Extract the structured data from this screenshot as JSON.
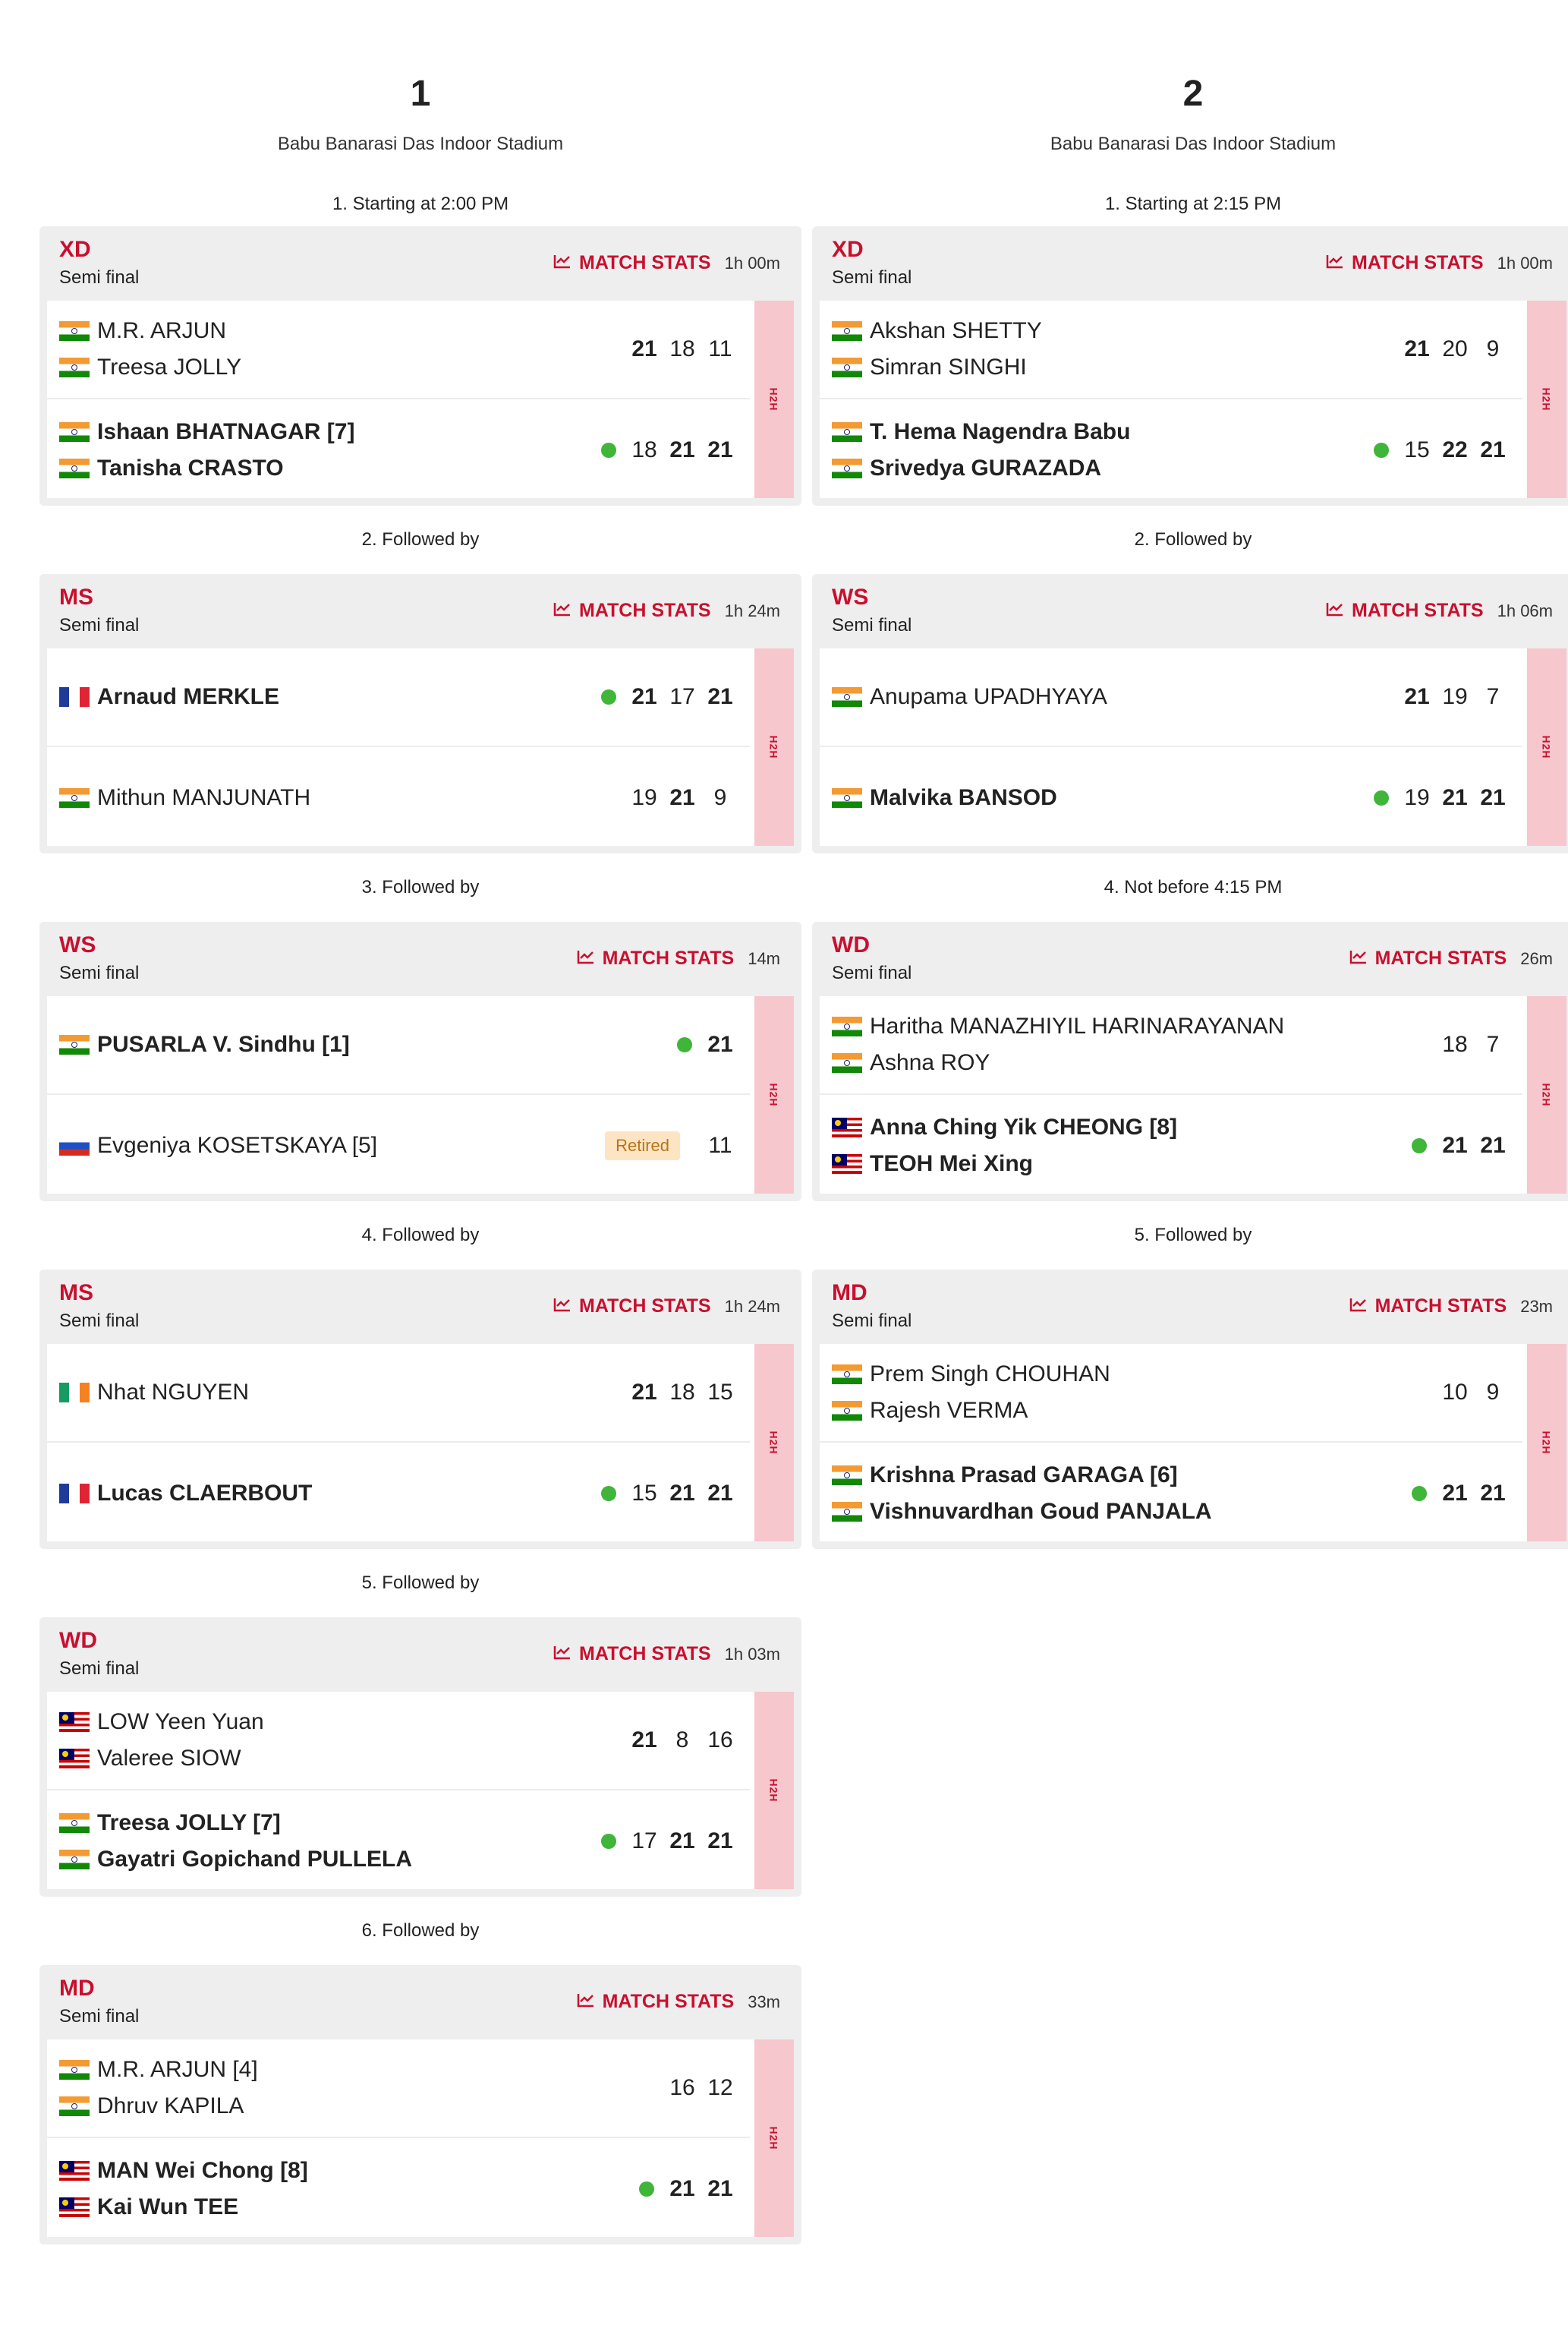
{
  "labels": {
    "match_stats": "MATCH STATS",
    "h2h": "H2H",
    "retired": "Retired"
  },
  "courts": [
    {
      "number": "1",
      "venue": "Babu Banarasi Das Indoor Stadium",
      "matches": [
        {
          "slot": "1. Starting at 2:00 PM",
          "event": "XD",
          "round": "Semi final",
          "duration": "1h 00m",
          "team_a": {
            "players": [
              {
                "name": "M.R. ARJUN",
                "flag": "ind"
              },
              {
                "name": "Treesa JOLLY",
                "flag": "ind"
              }
            ]
          },
          "team_b": {
            "players": [
              {
                "name": "Ishaan BHATNAGAR [7]",
                "flag": "ind"
              },
              {
                "name": "Tanisha CRASTO",
                "flag": "ind"
              }
            ]
          },
          "scores_a": [
            "21",
            "18",
            "11"
          ],
          "scores_b": [
            "18",
            "21",
            "21"
          ],
          "winner": "b"
        },
        {
          "slot": "2. Followed by",
          "event": "MS",
          "round": "Semi final",
          "duration": "1h 24m",
          "team_a": {
            "players": [
              {
                "name": "Arnaud MERKLE",
                "flag": "fra"
              }
            ]
          },
          "team_b": {
            "players": [
              {
                "name": "Mithun MANJUNATH",
                "flag": "ind"
              }
            ]
          },
          "scores_a": [
            "21",
            "17",
            "21"
          ],
          "scores_b": [
            "19",
            "21",
            "9"
          ],
          "winner": "a"
        },
        {
          "slot": "3. Followed by",
          "event": "WS",
          "round": "Semi final",
          "duration": "14m",
          "team_a": {
            "players": [
              {
                "name": "PUSARLA V. Sindhu [1]",
                "flag": "ind"
              }
            ]
          },
          "team_b": {
            "players": [
              {
                "name": "Evgeniya KOSETSKAYA [5]",
                "flag": "rus"
              }
            ]
          },
          "scores_a": [
            "21"
          ],
          "scores_b": [
            "11"
          ],
          "winner": "a",
          "retired": "b"
        },
        {
          "slot": "4. Followed by",
          "event": "MS",
          "round": "Semi final",
          "duration": "1h 24m",
          "team_a": {
            "players": [
              {
                "name": "Nhat NGUYEN",
                "flag": "irl"
              }
            ]
          },
          "team_b": {
            "players": [
              {
                "name": "Lucas CLAERBOUT",
                "flag": "fra"
              }
            ]
          },
          "scores_a": [
            "21",
            "18",
            "15"
          ],
          "scores_b": [
            "15",
            "21",
            "21"
          ],
          "winner": "b"
        },
        {
          "slot": "5. Followed by",
          "event": "WD",
          "round": "Semi final",
          "duration": "1h 03m",
          "team_a": {
            "players": [
              {
                "name": "LOW Yeen Yuan",
                "flag": "mas"
              },
              {
                "name": "Valeree SIOW",
                "flag": "mas"
              }
            ]
          },
          "team_b": {
            "players": [
              {
                "name": "Treesa JOLLY [7]",
                "flag": "ind"
              },
              {
                "name": "Gayatri Gopichand PULLELA",
                "flag": "ind"
              }
            ]
          },
          "scores_a": [
            "21",
            "8",
            "16"
          ],
          "scores_b": [
            "17",
            "21",
            "21"
          ],
          "winner": "b"
        },
        {
          "slot": "6. Followed by",
          "event": "MD",
          "round": "Semi final",
          "duration": "33m",
          "team_a": {
            "players": [
              {
                "name": "M.R. ARJUN [4]",
                "flag": "ind"
              },
              {
                "name": "Dhruv KAPILA",
                "flag": "ind"
              }
            ]
          },
          "team_b": {
            "players": [
              {
                "name": "MAN Wei Chong [8]",
                "flag": "mas"
              },
              {
                "name": "Kai Wun TEE",
                "flag": "mas"
              }
            ]
          },
          "scores_a": [
            "16",
            "12"
          ],
          "scores_b": [
            "21",
            "21"
          ],
          "winner": "b"
        }
      ]
    },
    {
      "number": "2",
      "venue": "Babu Banarasi Das Indoor Stadium",
      "matches": [
        {
          "slot": "1. Starting at 2:15 PM",
          "event": "XD",
          "round": "Semi final",
          "duration": "1h 00m",
          "team_a": {
            "players": [
              {
                "name": "Akshan SHETTY",
                "flag": "ind"
              },
              {
                "name": "Simran SINGHI",
                "flag": "ind"
              }
            ]
          },
          "team_b": {
            "players": [
              {
                "name": "T. Hema Nagendra Babu",
                "flag": "ind"
              },
              {
                "name": "Srivedya GURAZADA",
                "flag": "ind"
              }
            ]
          },
          "scores_a": [
            "21",
            "20",
            "9"
          ],
          "scores_b": [
            "15",
            "22",
            "21"
          ],
          "winner": "b"
        },
        {
          "slot": "2. Followed by",
          "event": "WS",
          "round": "Semi final",
          "duration": "1h 06m",
          "team_a": {
            "players": [
              {
                "name": "Anupama UPADHYAYA",
                "flag": "ind"
              }
            ]
          },
          "team_b": {
            "players": [
              {
                "name": "Malvika BANSOD",
                "flag": "ind"
              }
            ]
          },
          "scores_a": [
            "21",
            "19",
            "7"
          ],
          "scores_b": [
            "19",
            "21",
            "21"
          ],
          "winner": "b"
        },
        {
          "slot": "4. Not before 4:15 PM",
          "event": "WD",
          "round": "Semi final",
          "duration": "26m",
          "team_a": {
            "players": [
              {
                "name": "Haritha MANAZHIYIL HARINARAYANAN",
                "flag": "ind"
              },
              {
                "name": "Ashna ROY",
                "flag": "ind"
              }
            ]
          },
          "team_b": {
            "players": [
              {
                "name": "Anna Ching Yik CHEONG [8]",
                "flag": "mas"
              },
              {
                "name": "TEOH Mei Xing",
                "flag": "mas"
              }
            ]
          },
          "scores_a": [
            "18",
            "7"
          ],
          "scores_b": [
            "21",
            "21"
          ],
          "winner": "b"
        },
        {
          "slot": "5. Followed by",
          "event": "MD",
          "round": "Semi final",
          "duration": "23m",
          "team_a": {
            "players": [
              {
                "name": "Prem Singh CHOUHAN",
                "flag": "ind"
              },
              {
                "name": "Rajesh VERMA",
                "flag": "ind"
              }
            ]
          },
          "team_b": {
            "players": [
              {
                "name": "Krishna Prasad GARAGA [6]",
                "flag": "ind"
              },
              {
                "name": "Vishnuvardhan Goud PANJALA",
                "flag": "ind"
              }
            ]
          },
          "scores_a": [
            "10",
            "9"
          ],
          "scores_b": [
            "21",
            "21"
          ],
          "winner": "b"
        }
      ]
    }
  ]
}
